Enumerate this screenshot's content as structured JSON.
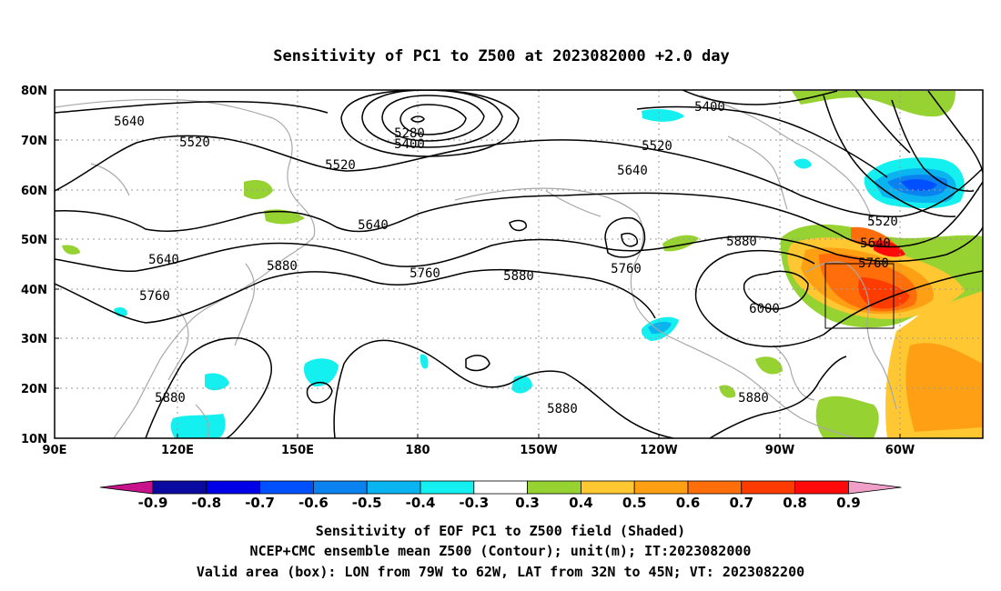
{
  "title": "Sensitivity of PC1 to Z500 at 2023082000 +2.0 day",
  "lat_labels": [
    "80N",
    "70N",
    "60N",
    "50N",
    "40N",
    "30N",
    "20N",
    "10N"
  ],
  "lon_labels": [
    "90E",
    "120E",
    "150E",
    "180",
    "150W",
    "120W",
    "90W",
    "60W"
  ],
  "colorbar": {
    "labels": [
      "-0.9",
      "-0.8",
      "-0.7",
      "-0.6",
      "-0.5",
      "-0.4",
      "-0.3",
      "0.3",
      "0.4",
      "0.5",
      "0.6",
      "0.7",
      "0.8",
      "0.9"
    ],
    "colors": [
      "#c8128c",
      "#0a0aa0",
      "#0000e6",
      "#0050ff",
      "#0a82f0",
      "#0ab4f0",
      "#14f0f0",
      "#ffffff",
      "#96d232",
      "#ffc832",
      "#ffa014",
      "#ff6e0a",
      "#ff3c00",
      "#ff0a0a",
      "#f0a0c8"
    ]
  },
  "contour_labels": [
    "5640",
    "5520",
    "5520",
    "5640",
    "5280",
    "5400",
    "5400",
    "5520",
    "5640",
    "5640",
    "5760",
    "5880",
    "5760",
    "5880",
    "5760",
    "5880",
    "6000",
    "5520",
    "5640",
    "5760",
    "5880",
    "5880",
    "5880"
  ],
  "captions": [
    "Sensitivity of EOF PC1 to Z500 field (Shaded)",
    "NCEP+CMC ensemble mean Z500 (Contour); unit(m); IT:2023082000",
    "Valid area (box): LON from 79W to 62W, LAT from 32N to 45N; VT: 2023082200"
  ]
}
